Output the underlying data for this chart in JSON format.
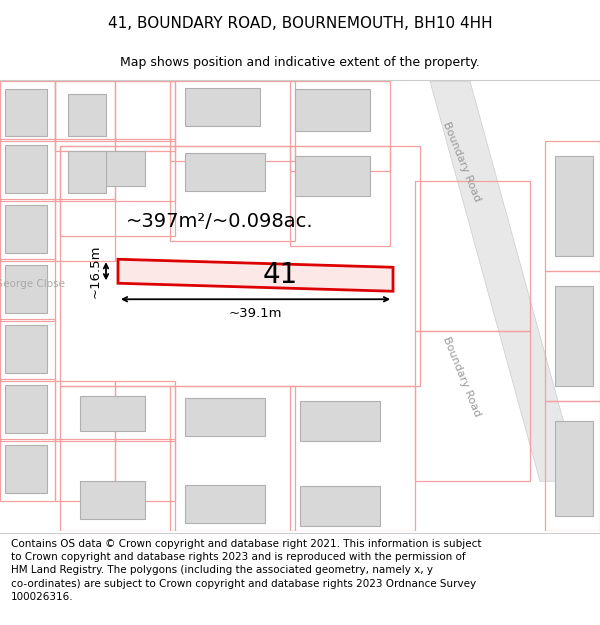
{
  "title": "41, BOUNDARY ROAD, BOURNEMOUTH, BH10 4HH",
  "subtitle": "Map shows position and indicative extent of the property.",
  "footer": "Contains OS data © Crown copyright and database right 2021. This information is subject\nto Crown copyright and database rights 2023 and is reproduced with the permission of\nHM Land Registry. The polygons (including the associated geometry, namely x, y\nco-ordinates) are subject to Crown copyright and database rights 2023 Ordnance Survey\n100026316.",
  "map_bg": "#f7f6f4",
  "light_red": "#f2a0a0",
  "red_outline": "#dd0000",
  "plot_fill": "#fde8e8",
  "road_fill": "#e8e8e8",
  "building_fill": "#d8d8d8",
  "building_edge": "#b0b0b0",
  "plot_label": "41",
  "area_label": "~397m²/~0.098ac.",
  "width_label": "~39.1m",
  "height_label": "~16.5m",
  "boundary_road_label": "Boundary Road",
  "george_close_label": "George Close",
  "title_fontsize": 11,
  "subtitle_fontsize": 9,
  "footer_fontsize": 7.5
}
